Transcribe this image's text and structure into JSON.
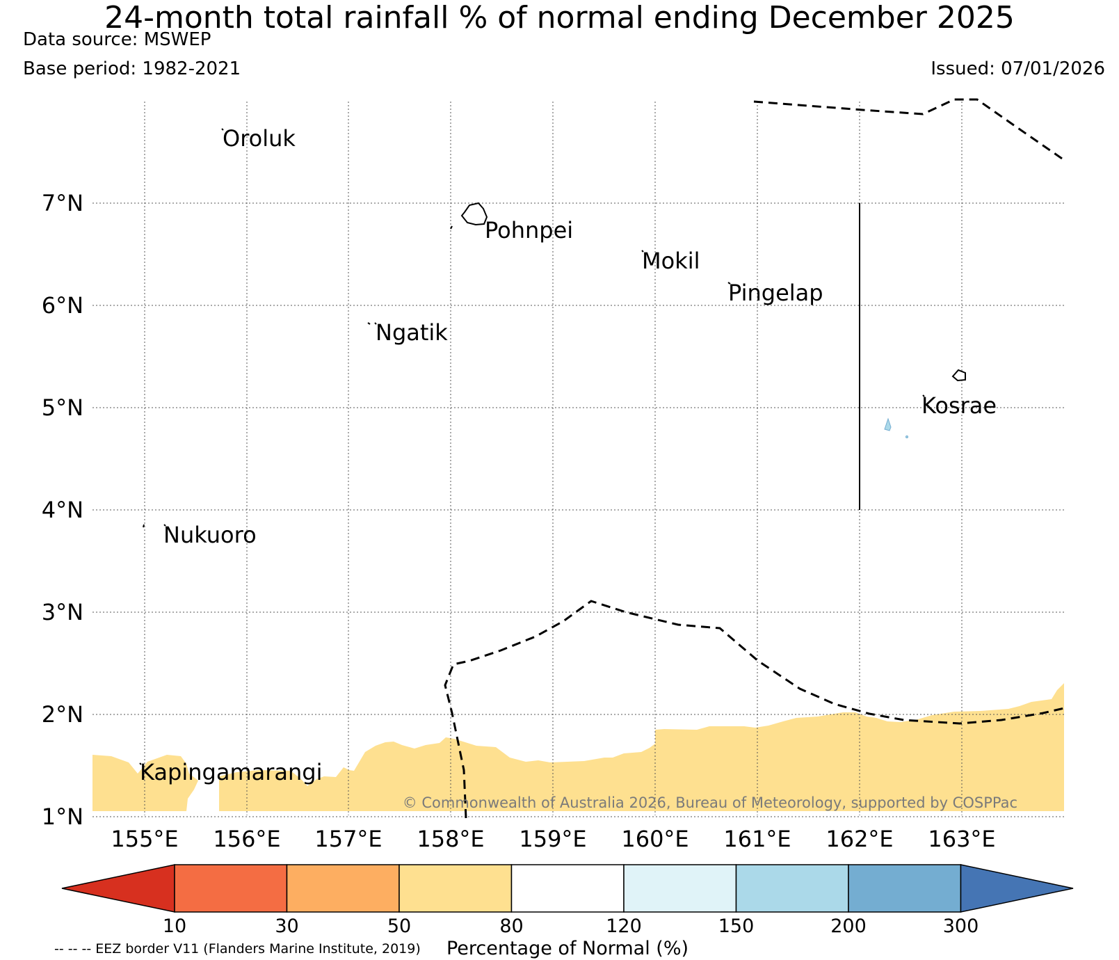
{
  "title": "24-month total rainfall % of normal ending December 2025",
  "data_source": "Data source: MSWEP",
  "base_period": "Base period: 1982-2021",
  "issued": "Issued: 07/01/2026",
  "lat_labels": [
    "7°N",
    "6°N",
    "5°N",
    "4°N",
    "3°N",
    "2°N",
    "1°N"
  ],
  "lon_labels": [
    "155°E",
    "156°E",
    "157°E",
    "158°E",
    "159°E",
    "160°E",
    "161°E",
    "162°E",
    "163°E"
  ],
  "places": {
    "oroluk": "Oroluk",
    "pohnpei": "Pohnpei",
    "mokil": "Mokil",
    "pingelap": "Pingelap",
    "ngatik": "Ngatik",
    "kosrae": "Kosrae",
    "nukuoro": "Nukuoro",
    "kapingamarangi": "Kapingamarangi"
  },
  "copyright": "© Commonwealth of Australia 2026, Bureau of Meteorology, supported by COSPPac",
  "colorbar": {
    "title": "Percentage of Normal (%)",
    "ticks": [
      "10",
      "30",
      "50",
      "80",
      "120",
      "150",
      "200",
      "300"
    ],
    "colors": [
      "#d7301f",
      "#f46d43",
      "#fdae61",
      "#fee090",
      "#ffffff",
      "#e0f3f8",
      "#abd9e9",
      "#74add1",
      "#4575b4"
    ]
  },
  "eez_note": "-- -- -- EEZ border V11 (Flanders Marine Institute, 2019)",
  "colors": {
    "dry_fill": "#fee090",
    "wet_fill": "#abd9e9"
  }
}
